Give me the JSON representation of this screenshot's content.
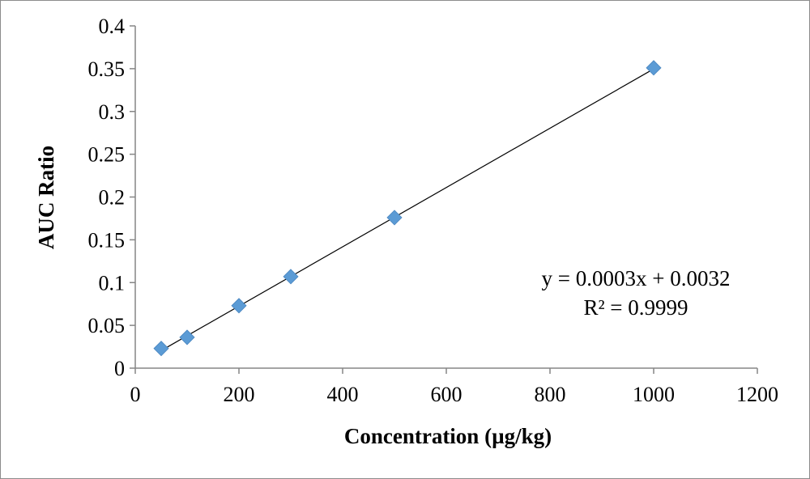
{
  "chart_data": {
    "type": "scatter",
    "xlabel": "Concentration (µg/kg)",
    "ylabel": "AUC Ratio",
    "xlim": [
      0,
      1200
    ],
    "ylim": [
      0,
      0.4
    ],
    "x_ticks": [
      "0",
      "200",
      "400",
      "600",
      "800",
      "1000",
      "1200"
    ],
    "y_ticks": [
      "0",
      "0.05",
      "0.1",
      "0.15",
      "0.2",
      "0.25",
      "0.3",
      "0.35",
      "0.4"
    ],
    "x": [
      50,
      100,
      200,
      300,
      500,
      1000
    ],
    "y": [
      0.023,
      0.036,
      0.073,
      0.107,
      0.176,
      0.351
    ],
    "trendline": {
      "slope": 0.0003465,
      "intercept": 0.0032,
      "x_range": [
        50,
        1000
      ]
    },
    "annotations": [
      "y = 0.0003x + 0.0032",
      "R² = 0.9999"
    ],
    "grid": false,
    "marker": "diamond",
    "colors": {
      "marker": "#5b9bd5",
      "trendline": "#000000",
      "axis": "#868686"
    }
  }
}
